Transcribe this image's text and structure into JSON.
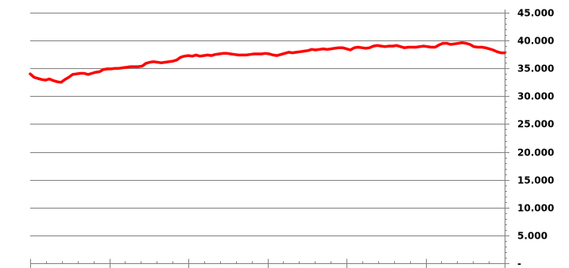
{
  "chart_data": {
    "type": "line",
    "title": "",
    "xlabel": "",
    "ylabel": "",
    "ylim": [
      0,
      45000
    ],
    "y_axis_side": "right",
    "grid": true,
    "legend": "none",
    "y_tick_labels": [
      "-",
      "5.000",
      "10.000",
      "15.000",
      "20.000",
      "25.000",
      "30.000",
      "35.000",
      "40.000",
      "45.000"
    ],
    "x_major_tick_count": 6,
    "x_minor_per_major": 5,
    "colors": {
      "line": "#ff0000",
      "grid": "#808080",
      "axis": "#808080",
      "text": "#000000"
    },
    "series": [
      {
        "values": [
          34000,
          33400,
          33200,
          33000,
          32900,
          33100,
          32800,
          32600,
          32500,
          33000,
          33400,
          33900,
          34000,
          34100,
          34100,
          33900,
          34100,
          34300,
          34400,
          34800,
          34900,
          34900,
          35000,
          35000,
          35100,
          35200,
          35300,
          35300,
          35300,
          35400,
          35900,
          36100,
          36200,
          36100,
          36000,
          36100,
          36200,
          36300,
          36500,
          37000,
          37200,
          37300,
          37200,
          37400,
          37200,
          37300,
          37400,
          37300,
          37500,
          37600,
          37700,
          37700,
          37600,
          37500,
          37400,
          37400,
          37400,
          37500,
          37600,
          37600,
          37600,
          37700,
          37600,
          37400,
          37300,
          37500,
          37700,
          37900,
          37800,
          37900,
          38000,
          38100,
          38200,
          38400,
          38300,
          38400,
          38500,
          38400,
          38500,
          38600,
          38700,
          38700,
          38500,
          38300,
          38700,
          38800,
          38700,
          38600,
          38700,
          39000,
          39100,
          39000,
          38900,
          39000,
          39000,
          39100,
          38900,
          38700,
          38800,
          38800,
          38800,
          38900,
          39000,
          38900,
          38800,
          38800,
          39200,
          39500,
          39500,
          39300,
          39400,
          39500,
          39600,
          39500,
          39300,
          38900,
          38800,
          38800,
          38700,
          38500,
          38300,
          38000,
          37800,
          37800
        ]
      }
    ]
  }
}
